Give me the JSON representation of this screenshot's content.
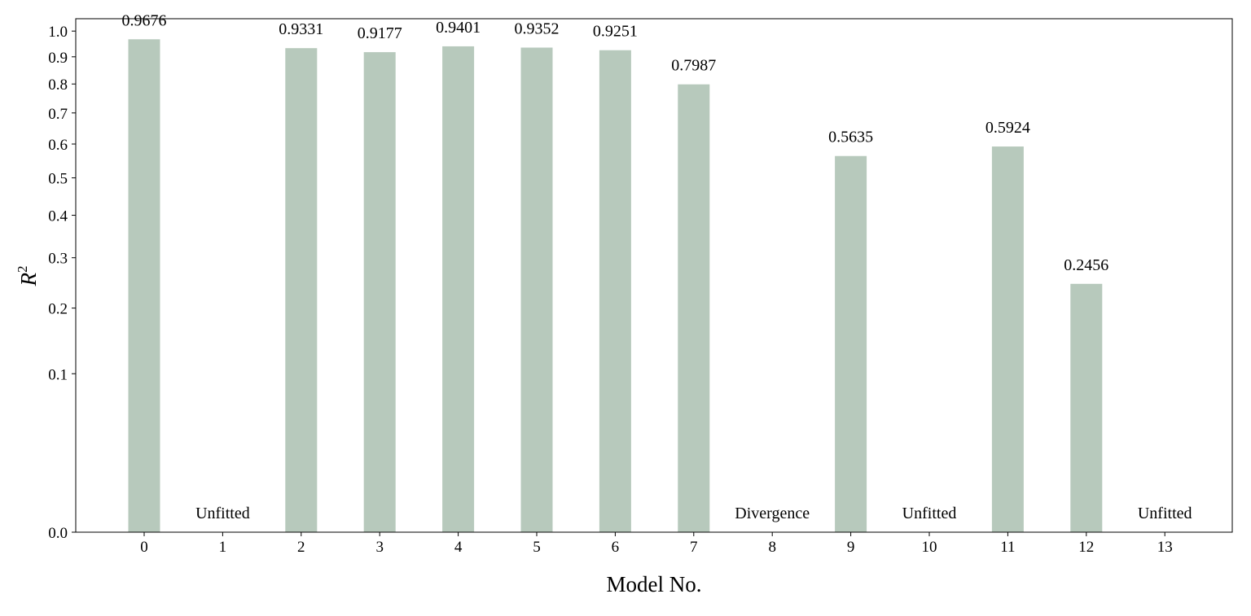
{
  "chart_data": {
    "type": "bar",
    "xlabel": "Model No.",
    "ylabel": "R",
    "ylabel_superscript": "2",
    "y_scale": "sqrt",
    "ylim": [
      0,
      1.05
    ],
    "yticks": [
      0.0,
      0.1,
      0.2,
      0.3,
      0.4,
      0.5,
      0.6,
      0.7,
      0.8,
      0.9,
      1.0
    ],
    "ytick_labels": [
      "0.0",
      "0.1",
      "0.2",
      "0.3",
      "0.4",
      "0.5",
      "0.6",
      "0.7",
      "0.8",
      "0.9",
      "1.0"
    ],
    "categories": [
      "0",
      "1",
      "2",
      "3",
      "4",
      "5",
      "6",
      "7",
      "8",
      "9",
      "10",
      "11",
      "12",
      "13"
    ],
    "values": [
      0.9676,
      null,
      0.9331,
      0.9177,
      0.9401,
      0.9352,
      0.9251,
      0.7987,
      null,
      0.5635,
      null,
      0.5924,
      0.2456,
      null
    ],
    "labels": [
      "0.9676",
      "Unfitted",
      "0.9331",
      "0.9177",
      "0.9401",
      "0.9352",
      "0.9251",
      "0.7987",
      "Divergence",
      "0.5635",
      "Unfitted",
      "0.5924",
      "0.2456",
      "Unfitted"
    ],
    "bar_color": "#b7c9bc",
    "grid": false,
    "legend": "none"
  }
}
